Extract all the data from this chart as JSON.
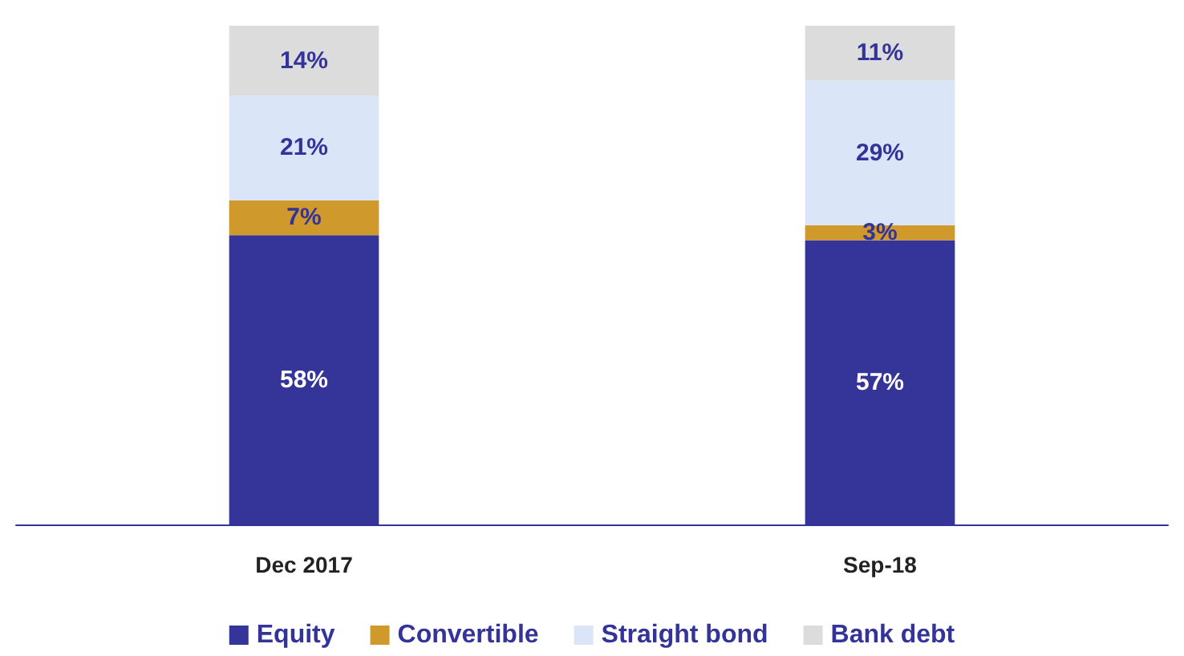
{
  "chart_data": {
    "type": "bar",
    "stacked": true,
    "categories": [
      "Dec 2017",
      "Sep-18"
    ],
    "series": [
      {
        "name": "Equity",
        "color": "#353599",
        "values": [
          58,
          57
        ],
        "value_labels": [
          "58%",
          "57%"
        ]
      },
      {
        "name": "Convertible",
        "color": "#d0992c",
        "values": [
          7,
          3
        ],
        "value_labels": [
          "7%",
          "3%"
        ]
      },
      {
        "name": "Straight bond",
        "color": "#dbe5f8",
        "values": [
          21,
          29
        ],
        "value_labels": [
          "21%",
          "29%"
        ]
      },
      {
        "name": "Bank debt",
        "color": "#dcdcdc",
        "values": [
          14,
          11
        ],
        "value_labels": [
          "14%",
          "11%"
        ]
      }
    ],
    "legend": "bottom"
  }
}
